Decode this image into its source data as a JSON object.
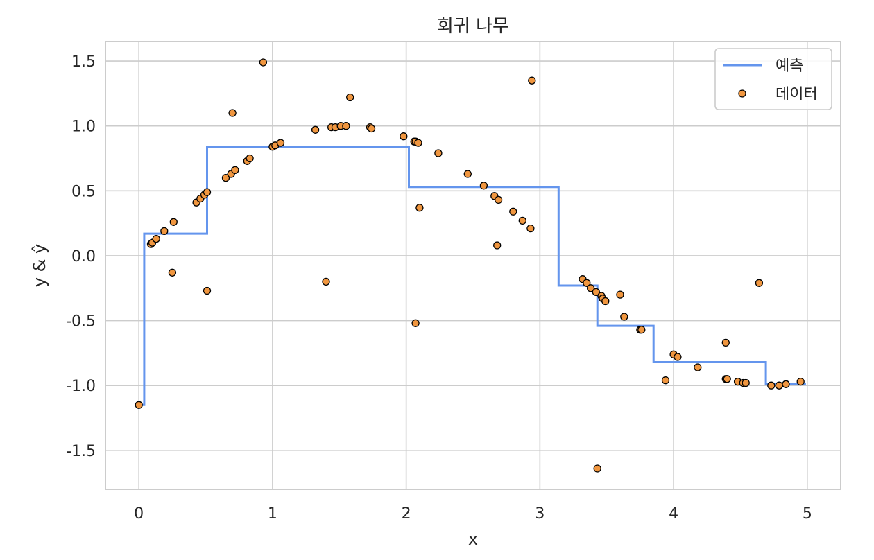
{
  "chart_data": {
    "type": "line",
    "title": "회귀 나무",
    "xlabel": "x",
    "ylabel": "y & ŷ",
    "xlim": [
      -0.25,
      5.25
    ],
    "ylim": [
      -1.8,
      1.65
    ],
    "x_ticks": [
      0,
      1,
      2,
      3,
      4,
      5
    ],
    "x_tick_labels": [
      "0",
      "1",
      "2",
      "3",
      "4",
      "5"
    ],
    "y_ticks": [
      1.5,
      1.0,
      0.5,
      0.0,
      -0.5,
      -1.0,
      -1.5
    ],
    "y_tick_labels": [
      "1.5",
      "1.0",
      "0.5",
      "0.0",
      "-0.5",
      "-1.0",
      "-1.5"
    ],
    "grid": true,
    "legend_position": "top-right",
    "series": [
      {
        "name": "예측",
        "kind": "step-line",
        "color": "#6495ED",
        "x": [
          0.0,
          0.04,
          0.04,
          0.51,
          0.51,
          2.02,
          2.02,
          3.14,
          3.14,
          3.43,
          3.43,
          3.85,
          3.85,
          4.69,
          4.69,
          4.99
        ],
        "y": [
          -1.15,
          -1.15,
          0.17,
          0.17,
          0.84,
          0.84,
          0.53,
          0.53,
          -0.23,
          -0.23,
          -0.54,
          -0.54,
          -0.82,
          -0.82,
          -0.99,
          -0.99
        ]
      },
      {
        "name": "데이터",
        "kind": "scatter",
        "color": "#F0963F",
        "edge_color": "#000000",
        "points": [
          [
            0.0,
            -1.15
          ],
          [
            0.09,
            0.09
          ],
          [
            0.1,
            0.1
          ],
          [
            0.13,
            0.13
          ],
          [
            0.19,
            0.19
          ],
          [
            0.25,
            -0.13
          ],
          [
            0.26,
            0.26
          ],
          [
            0.43,
            0.41
          ],
          [
            0.46,
            0.44
          ],
          [
            0.49,
            0.47
          ],
          [
            0.51,
            0.49
          ],
          [
            0.51,
            -0.27
          ],
          [
            0.65,
            0.6
          ],
          [
            0.69,
            0.63
          ],
          [
            0.7,
            1.1
          ],
          [
            0.72,
            0.66
          ],
          [
            0.81,
            0.73
          ],
          [
            0.83,
            0.75
          ],
          [
            0.93,
            1.49
          ],
          [
            1.0,
            0.84
          ],
          [
            1.02,
            0.85
          ],
          [
            1.06,
            0.87
          ],
          [
            1.32,
            0.97
          ],
          [
            1.4,
            -0.2
          ],
          [
            1.44,
            0.99
          ],
          [
            1.47,
            0.99
          ],
          [
            1.51,
            1.0
          ],
          [
            1.55,
            1.0
          ],
          [
            1.58,
            1.22
          ],
          [
            1.73,
            0.99
          ],
          [
            1.74,
            0.98
          ],
          [
            1.98,
            0.92
          ],
          [
            2.06,
            0.88
          ],
          [
            2.07,
            0.88
          ],
          [
            2.09,
            0.87
          ],
          [
            2.07,
            -0.52
          ],
          [
            2.1,
            0.37
          ],
          [
            2.24,
            0.79
          ],
          [
            2.46,
            0.63
          ],
          [
            2.58,
            0.54
          ],
          [
            2.66,
            0.46
          ],
          [
            2.68,
            0.08
          ],
          [
            2.69,
            0.43
          ],
          [
            2.8,
            0.34
          ],
          [
            2.87,
            0.27
          ],
          [
            2.93,
            0.21
          ],
          [
            2.94,
            1.35
          ],
          [
            3.32,
            -0.18
          ],
          [
            3.35,
            -0.21
          ],
          [
            3.38,
            -0.25
          ],
          [
            3.42,
            -0.28
          ],
          [
            3.43,
            -1.64
          ],
          [
            3.46,
            -0.31
          ],
          [
            3.47,
            -0.33
          ],
          [
            3.49,
            -0.35
          ],
          [
            3.6,
            -0.3
          ],
          [
            3.63,
            -0.47
          ],
          [
            3.75,
            -0.57
          ],
          [
            3.76,
            -0.57
          ],
          [
            3.94,
            -0.96
          ],
          [
            4.0,
            -0.76
          ],
          [
            4.03,
            -0.78
          ],
          [
            4.18,
            -0.86
          ],
          [
            4.39,
            -0.95
          ],
          [
            4.39,
            -0.67
          ],
          [
            4.4,
            -0.95
          ],
          [
            4.48,
            -0.97
          ],
          [
            4.52,
            -0.98
          ],
          [
            4.54,
            -0.98
          ],
          [
            4.64,
            -0.21
          ],
          [
            4.73,
            -1.0
          ],
          [
            4.79,
            -1.0
          ],
          [
            4.84,
            -0.99
          ],
          [
            4.95,
            -0.97
          ]
        ]
      }
    ]
  }
}
